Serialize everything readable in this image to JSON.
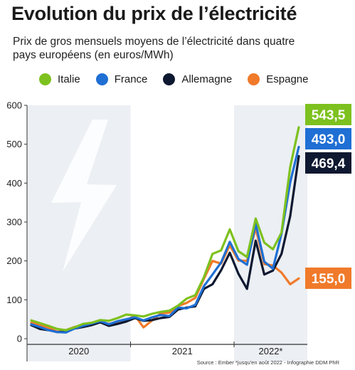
{
  "title": "Evolution du prix de l’électricité",
  "subtitle": "Prix de gros mensuels moyens de l’électricité dans quatre pays européens (en euros/MWh)",
  "source": "Source : Ember *jusqu'en août 2022 - Infographie DDM PhR",
  "chart_data": {
    "type": "line",
    "xlabel": "",
    "ylabel": "",
    "ylim": [
      0,
      600
    ],
    "yticks": [
      0,
      100,
      200,
      300,
      400,
      500,
      600
    ],
    "year_labels": [
      "2020",
      "2021",
      "2022*"
    ],
    "x": [
      "2020-01",
      "2020-02",
      "2020-03",
      "2020-04",
      "2020-05",
      "2020-06",
      "2020-07",
      "2020-08",
      "2020-09",
      "2020-10",
      "2020-11",
      "2020-12",
      "2021-01",
      "2021-02",
      "2021-03",
      "2021-04",
      "2021-05",
      "2021-06",
      "2021-07",
      "2021-08",
      "2021-09",
      "2021-10",
      "2021-11",
      "2021-12",
      "2022-01",
      "2022-02",
      "2022-03",
      "2022-04",
      "2022-05",
      "2022-06",
      "2022-07",
      "2022-08"
    ],
    "series": [
      {
        "name": "Italie",
        "color": "#7dc11f",
        "values": [
          47,
          40,
          33,
          25,
          22,
          29,
          38,
          41,
          48,
          46,
          53,
          62,
          60,
          57,
          64,
          69,
          72,
          85,
          103,
          112,
          158,
          218,
          227,
          281,
          225,
          210,
          309,
          247,
          230,
          273,
          441,
          543.5
        ]
      },
      {
        "name": "France",
        "color": "#1f6fd4",
        "values": [
          37,
          30,
          22,
          17,
          16,
          26,
          33,
          39,
          45,
          37,
          45,
          50,
          55,
          47,
          55,
          61,
          58,
          80,
          78,
          87,
          135,
          165,
          196,
          249,
          205,
          190,
          296,
          198,
          180,
          270,
          402,
          493.0
        ]
      },
      {
        "name": "Allemagne",
        "color": "#0e1830",
        "values": [
          35,
          25,
          22,
          17,
          18,
          26,
          30,
          35,
          42,
          33,
          38,
          44,
          53,
          46,
          48,
          53,
          56,
          75,
          80,
          83,
          128,
          140,
          176,
          221,
          167,
          128,
          252,
          165,
          175,
          218,
          315,
          469.4
        ]
      },
      {
        "name": "Espagne",
        "color": "#f07a2a",
        "values": [
          41,
          35,
          28,
          18,
          22,
          30,
          35,
          38,
          42,
          38,
          42,
          46,
          60,
          29,
          47,
          65,
          67,
          84,
          92,
          105,
          154,
          200,
          193,
          240,
          201,
          200,
          284,
          192,
          188,
          170,
          140,
          155.0
        ]
      }
    ],
    "end_labels": [
      "543,5",
      "493,0",
      "469,4",
      "155,0"
    ],
    "legend_position": "top",
    "grid": false
  }
}
